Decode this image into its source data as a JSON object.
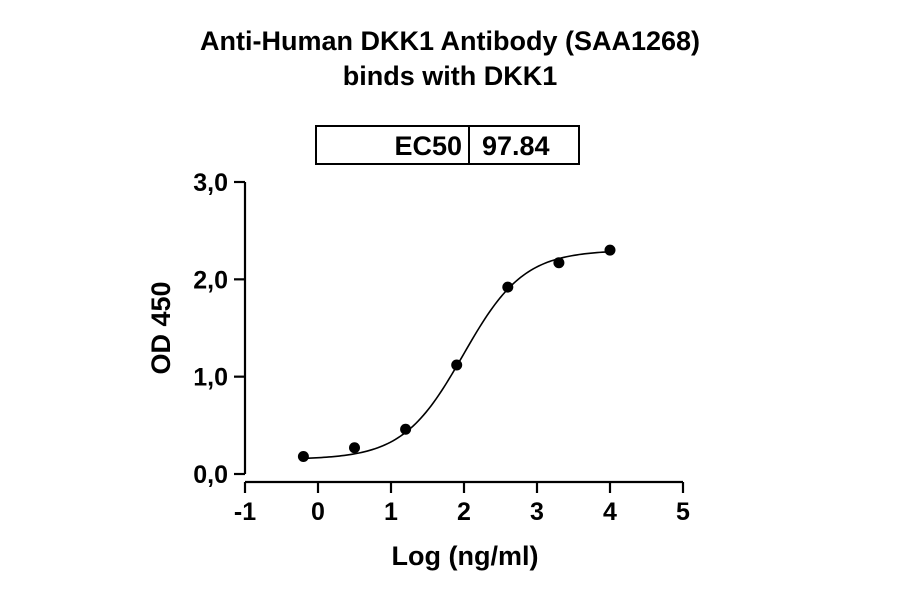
{
  "title_line1": "Anti-Human DKK1 Antibody (SAA1268)",
  "title_line2": "binds with DKK1",
  "ec50_box": {
    "label": "EC50",
    "value": "97.84"
  },
  "chart_data": {
    "type": "scatter",
    "xlabel": "Log (ng/ml)",
    "ylabel": "OD 450",
    "xlim": [
      -1,
      5
    ],
    "ylim": [
      0,
      3
    ],
    "x_ticks": [
      -1,
      0,
      1,
      2,
      3,
      4,
      5
    ],
    "y_ticks": [
      "0,0",
      "1,0",
      "2,0",
      "3,0"
    ],
    "y_tick_values": [
      0,
      1,
      2,
      3
    ],
    "series": [
      {
        "points": [
          {
            "x": -0.2,
            "y": 0.18
          },
          {
            "x": 0.5,
            "y": 0.27
          },
          {
            "x": 1.2,
            "y": 0.46
          },
          {
            "x": 1.9,
            "y": 1.12
          },
          {
            "x": 2.6,
            "y": 1.92
          },
          {
            "x": 3.3,
            "y": 2.17
          },
          {
            "x": 4.0,
            "y": 2.3
          }
        ],
        "fit": {
          "model": "4PL",
          "bottom": 0.15,
          "top": 2.3,
          "log_ec50": 1.99,
          "hill": 1.05
        }
      }
    ],
    "grid": false
  }
}
